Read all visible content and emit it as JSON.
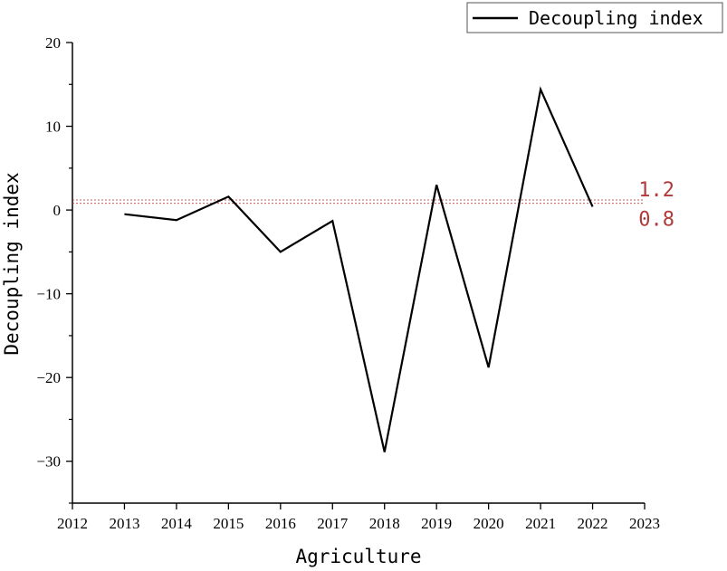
{
  "chart_data": {
    "type": "line",
    "xlabel": "Agriculture",
    "ylabel": "Decoupling index",
    "xlim": [
      2012,
      2023
    ],
    "ylim": [
      -35,
      20
    ],
    "x_ticks": [
      2012,
      2013,
      2014,
      2015,
      2016,
      2017,
      2018,
      2019,
      2020,
      2021,
      2022,
      2023
    ],
    "y_ticks": [
      -30,
      -20,
      -10,
      0,
      10,
      20
    ],
    "grid": false,
    "legend": {
      "placement": "top-right"
    },
    "series": [
      {
        "name": "Decoupling index",
        "color": "#000000",
        "x": [
          2013,
          2014,
          2015,
          2016,
          2017,
          2018,
          2019,
          2020,
          2021,
          2022
        ],
        "y": [
          -0.5,
          -1.2,
          1.6,
          -5.0,
          -1.3,
          -28.9,
          3.0,
          -18.8,
          14.4,
          0.4
        ]
      }
    ],
    "reference_lines": [
      {
        "y": 1.2,
        "label": "1.2",
        "color": "#b03a3a"
      },
      {
        "y": 0.8,
        "label": "0.8",
        "color": "#b03a3a"
      }
    ]
  }
}
